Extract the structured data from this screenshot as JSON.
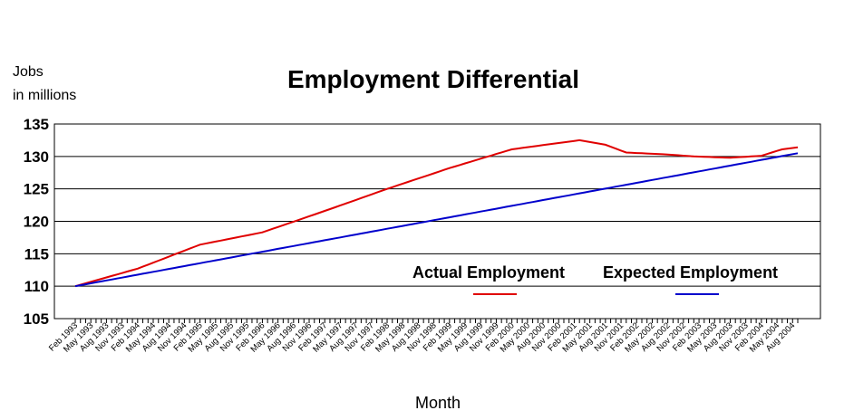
{
  "chart_data": {
    "type": "line",
    "title": "Employment Differential",
    "ylabel_line1": "Jobs",
    "ylabel_line2": "in millions",
    "xlabel": "Month",
    "ylim": [
      105,
      135
    ],
    "yticks": [
      105,
      110,
      115,
      120,
      125,
      130,
      135
    ],
    "grid": "horizontal",
    "legend_position": "bottom-right",
    "x_months": [
      "Feb 1993",
      "Mar 1993",
      "Apr 1993",
      "May 1993",
      "Jun 1993",
      "Jul 1993",
      "Aug 1993",
      "Sep 1993",
      "Oct 1993",
      "Nov 1993",
      "Dec 1993",
      "Jan 1994",
      "Feb 1994",
      "Mar 1994",
      "Apr 1994",
      "May 1994",
      "Jun 1994",
      "Jul 1994",
      "Aug 1994",
      "Sep 1994",
      "Oct 1994",
      "Nov 1994",
      "Dec 1994",
      "Jan 1995",
      "Feb 1995",
      "Mar 1995",
      "Apr 1995",
      "May 1995",
      "Jun 1995",
      "Jul 1995",
      "Aug 1995",
      "Sep 1995",
      "Oct 1995",
      "Nov 1995",
      "Dec 1995",
      "Jan 1996",
      "Feb 1996",
      "Mar 1996",
      "Apr 1996",
      "May 1996",
      "Jun 1996",
      "Jul 1996",
      "Aug 1996",
      "Sep 1996",
      "Oct 1996",
      "Nov 1996",
      "Dec 1996",
      "Jan 1997",
      "Feb 1997",
      "Mar 1997",
      "Apr 1997",
      "May 1997",
      "Jun 1997",
      "Jul 1997",
      "Aug 1997",
      "Sep 1997",
      "Oct 1997",
      "Nov 1997",
      "Dec 1997",
      "Jan 1998",
      "Feb 1998",
      "Mar 1998",
      "Apr 1998",
      "May 1998",
      "Jun 1998",
      "Jul 1998",
      "Aug 1998",
      "Sep 1998",
      "Oct 1998",
      "Nov 1998",
      "Dec 1998",
      "Jan 1999",
      "Feb 1999",
      "Mar 1999",
      "Apr 1999",
      "May 1999",
      "Jun 1999",
      "Jul 1999",
      "Aug 1999",
      "Sep 1999",
      "Oct 1999",
      "Nov 1999",
      "Dec 1999",
      "Jan 2000",
      "Feb 2000",
      "Mar 2000",
      "Apr 2000",
      "May 2000",
      "Jun 2000",
      "Jul 2000",
      "Aug 2000",
      "Sep 2000",
      "Oct 2000",
      "Nov 2000",
      "Dec 2000",
      "Jan 2001",
      "Feb 2001",
      "Mar 2001",
      "Apr 2001",
      "May 2001",
      "Jun 2001",
      "Jul 2001",
      "Aug 2001",
      "Sep 2001",
      "Oct 2001",
      "Nov 2001",
      "Dec 2001",
      "Jan 2002",
      "Feb 2002",
      "Mar 2002",
      "Apr 2002",
      "May 2002",
      "Jun 2002",
      "Jul 2002",
      "Aug 2002",
      "Sep 2002",
      "Oct 2002",
      "Nov 2002",
      "Dec 2002",
      "Jan 2003",
      "Feb 2003",
      "Mar 2003",
      "Apr 2003",
      "May 2003",
      "Jun 2003",
      "Jul 2003",
      "Aug 2003",
      "Sep 2003",
      "Oct 2003",
      "Nov 2003",
      "Dec 2003",
      "Jan 2004",
      "Feb 2004",
      "Mar 2004",
      "Apr 2004",
      "May 2004",
      "Jun 2004",
      "Jul 2004",
      "Aug 2004",
      "Sep 2004"
    ],
    "x_tick_labels": [
      "Feb 1993",
      "May 1993",
      "Aug 1993",
      "Nov 1993",
      "Feb 1994",
      "May 1994",
      "Aug 1994",
      "Nov 1994",
      "Feb 1995",
      "May 1995",
      "Aug 1995",
      "Nov 1995",
      "Feb 1996",
      "May 1996",
      "Aug 1996",
      "Nov 1996",
      "Feb 1997",
      "May 1997",
      "Aug 1997",
      "Nov 1997",
      "Feb 1998",
      "May 1998",
      "Aug 1998",
      "Nov 1998",
      "Feb 1999",
      "May 1999",
      "Aug 1999",
      "Nov 1999",
      "Feb 2000",
      "May 2000",
      "Aug 2000",
      "Nov 2000",
      "Feb 2001",
      "May 2001",
      "Aug 2001",
      "Nov 2001",
      "Feb 2002",
      "May 2002",
      "Aug 2002",
      "Nov 2002",
      "Feb 2003",
      "May 2003",
      "Aug 2003",
      "Nov 2003",
      "Feb 2004",
      "May 2004",
      "Aug 2004"
    ],
    "x_tick_display": [
      "Feb 1993",
      "May 1993",
      "Aug 1993",
      "Nov 1993",
      "Feb 1994",
      "May 1994",
      "Aug 1994",
      "Nov 1994",
      "Feb 1995",
      "May 1995",
      "Aug 1995",
      "Nov 1995",
      "Feb 1996",
      "May 1996",
      "Aug 1996",
      "Nov 1996",
      "Feb 1997",
      "May 1997",
      "Aug 1997",
      "Nov 1997",
      "Feb 1998",
      "May 1998",
      "Aug 1998",
      "Nov 1998",
      "Feb 1999",
      "May 1999",
      "Aug 1999",
      "Nov 1999",
      "Feb 2000",
      "May 2000",
      "Aug 2000",
      "Nov 2000",
      "Feb 2001",
      "May 2001",
      "Aug 2001",
      "Nov 2001",
      "Feb 2002",
      "May 2002",
      "Aug 2002",
      "Nov 2002",
      "Feb 2003",
      "May 2003",
      "Aug 2003",
      "Nov 2003",
      "Feb 2004",
      "May 2004",
      "Aug 2004"
    ],
    "series": [
      {
        "name": "Actual Employment",
        "color": "#e00000",
        "anchors": [
          [
            "Feb 1993",
            110.0
          ],
          [
            "Feb 1994",
            112.7
          ],
          [
            "Feb 1995",
            116.4
          ],
          [
            "Feb 1996",
            118.3
          ],
          [
            "Feb 1997",
            121.6
          ],
          [
            "Feb 1998",
            125.0
          ],
          [
            "Feb 1999",
            128.2
          ],
          [
            "Feb 2000",
            131.1
          ],
          [
            "Mar 2001",
            132.5
          ],
          [
            "Aug 2001",
            131.8
          ],
          [
            "Dec 2001",
            130.6
          ],
          [
            "Aug 2002",
            130.3
          ],
          [
            "Jan 2003",
            130.0
          ],
          [
            "Aug 2003",
            129.8
          ],
          [
            "Feb 2004",
            130.1
          ],
          [
            "Jun 2004",
            131.1
          ],
          [
            "Sep 2004",
            131.4
          ]
        ]
      },
      {
        "name": "Expected Employment",
        "color": "#0000cc",
        "anchors": [
          [
            "Feb 1993",
            110.0
          ],
          [
            "Sep 2004",
            130.5
          ]
        ]
      }
    ]
  }
}
